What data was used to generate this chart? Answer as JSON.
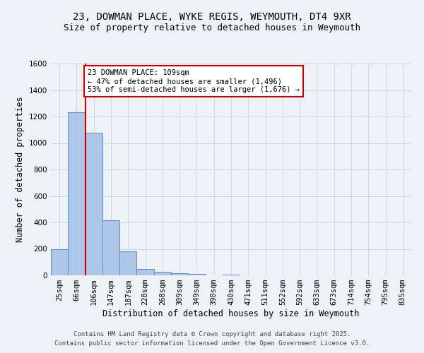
{
  "title_line1": "23, DOWMAN PLACE, WYKE REGIS, WEYMOUTH, DT4 9XR",
  "title_line2": "Size of property relative to detached houses in Weymouth",
  "xlabel": "Distribution of detached houses by size in Weymouth",
  "ylabel": "Number of detached properties",
  "categories": [
    "25sqm",
    "66sqm",
    "106sqm",
    "147sqm",
    "187sqm",
    "228sqm",
    "268sqm",
    "309sqm",
    "349sqm",
    "390sqm",
    "430sqm",
    "471sqm",
    "511sqm",
    "552sqm",
    "592sqm",
    "633sqm",
    "673sqm",
    "714sqm",
    "754sqm",
    "795sqm",
    "835sqm"
  ],
  "values": [
    200,
    1230,
    1080,
    415,
    180,
    50,
    25,
    18,
    10,
    0,
    8,
    0,
    0,
    0,
    0,
    0,
    0,
    0,
    0,
    0,
    0
  ],
  "bar_color": "#aec6e8",
  "bar_edge_color": "#5a8fc2",
  "vline_index": 2,
  "annotation_text": "23 DOWMAN PLACE: 109sqm\n← 47% of detached houses are smaller (1,496)\n53% of semi-detached houses are larger (1,676) →",
  "annotation_box_color": "#ffffff",
  "annotation_box_edge_color": "#cc0000",
  "vline_color": "#cc0000",
  "grid_color": "#c8d8e8",
  "background_color": "#eef2f7",
  "plot_bg_color": "#eef2f7",
  "ylim": [
    0,
    1600
  ],
  "yticks": [
    0,
    200,
    400,
    600,
    800,
    1000,
    1200,
    1400,
    1600
  ],
  "footnote_line1": "Contains HM Land Registry data © Crown copyright and database right 2025.",
  "footnote_line2": "Contains public sector information licensed under the Open Government Licence v3.0.",
  "title_fontsize": 10,
  "subtitle_fontsize": 9,
  "axis_label_fontsize": 8.5,
  "tick_fontsize": 7.5,
  "annotation_fontsize": 7.5,
  "footnote_fontsize": 6.5
}
